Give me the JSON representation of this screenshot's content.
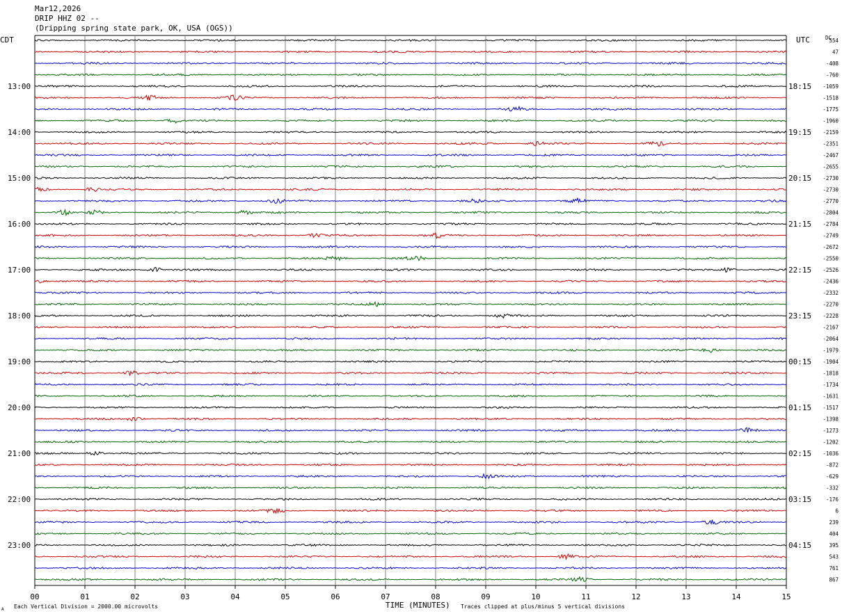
{
  "header": {
    "date": "Mar12,2026",
    "station": "DRIP HHZ 02 --",
    "location": "(Dripping spring state park, OK, USA (OGS))"
  },
  "left_tz": "CDT",
  "right_tz": "UTC",
  "dc_label": "DC",
  "footer": {
    "xlabel": "TIME (MINUTES)",
    "scale_note": "Each Vertical Division = 2000.00 microvolts",
    "clip_note": "Traces clipped at plus/minus 5 vertical divisions",
    "corner_mark": "A"
  },
  "colors": {
    "cycle": [
      "#000000",
      "#cc0000",
      "#0000cc",
      "#006400"
    ],
    "grid": "#808080"
  },
  "chart_data": {
    "type": "line",
    "x_ticks": [
      "00",
      "01",
      "02",
      "03",
      "04",
      "05",
      "06",
      "07",
      "08",
      "09",
      "10",
      "11",
      "12",
      "13",
      "14",
      "15"
    ],
    "xlim": [
      0,
      15
    ],
    "trace_minutes": 15,
    "left_hour_labels": [
      {
        "trace": 4,
        "label": "13:00"
      },
      {
        "trace": 8,
        "label": "14:00"
      },
      {
        "trace": 12,
        "label": "15:00"
      },
      {
        "trace": 16,
        "label": "16:00"
      },
      {
        "trace": 20,
        "label": "17:00"
      },
      {
        "trace": 24,
        "label": "18:00"
      },
      {
        "trace": 28,
        "label": "19:00"
      },
      {
        "trace": 32,
        "label": "20:00"
      },
      {
        "trace": 36,
        "label": "21:00"
      },
      {
        "trace": 40,
        "label": "22:00"
      },
      {
        "trace": 44,
        "label": "23:00"
      }
    ],
    "right_hour_labels": [
      {
        "trace": 4,
        "label": "18:15"
      },
      {
        "trace": 8,
        "label": "19:15"
      },
      {
        "trace": 12,
        "label": "20:15"
      },
      {
        "trace": 16,
        "label": "21:15"
      },
      {
        "trace": 20,
        "label": "22:15"
      },
      {
        "trace": 24,
        "label": "23:15"
      },
      {
        "trace": 28,
        "label": "00:15"
      },
      {
        "trace": 32,
        "label": "01:15"
      },
      {
        "trace": 36,
        "label": "02:15"
      },
      {
        "trace": 40,
        "label": "03:15"
      },
      {
        "trace": 44,
        "label": "04:15"
      }
    ],
    "dc_offsets": [
      "554",
      "47",
      "-408",
      "-760",
      "-1059",
      "-1518",
      "-1775",
      "-1960",
      "-2159",
      "-2351",
      "-2467",
      "-2655",
      "-2730",
      "-2730",
      "-2770",
      "-2804",
      "-2784",
      "-2749",
      "-2672",
      "-2550",
      "-2526",
      "-2436",
      "-2332",
      "-2270",
      "-2228",
      "-2167",
      "-2064",
      "-1979",
      "-1904",
      "-1818",
      "-1734",
      "-1631",
      "-1517",
      "-1398",
      "-1273",
      "-1202",
      "-1036",
      "-872",
      "-629",
      "-332",
      "-176",
      "6",
      "239",
      "404",
      "395",
      "543",
      "761",
      "867"
    ],
    "events": [
      {
        "trace": 5,
        "minute": 2.3
      },
      {
        "trace": 5,
        "minute": 4.0
      },
      {
        "trace": 6,
        "minute": 9.6
      },
      {
        "trace": 7,
        "minute": 2.8
      },
      {
        "trace": 9,
        "minute": 10.0
      },
      {
        "trace": 9,
        "minute": 12.4
      },
      {
        "trace": 13,
        "minute": 0.1
      },
      {
        "trace": 13,
        "minute": 1.2
      },
      {
        "trace": 14,
        "minute": 4.8
      },
      {
        "trace": 14,
        "minute": 8.7
      },
      {
        "trace": 14,
        "minute": 10.8
      },
      {
        "trace": 15,
        "minute": 0.6
      },
      {
        "trace": 15,
        "minute": 1.2
      },
      {
        "trace": 15,
        "minute": 4.2
      },
      {
        "trace": 17,
        "minute": 5.6
      },
      {
        "trace": 17,
        "minute": 8.0
      },
      {
        "trace": 19,
        "minute": 6.0
      },
      {
        "trace": 19,
        "minute": 7.6
      },
      {
        "trace": 20,
        "minute": 2.4
      },
      {
        "trace": 20,
        "minute": 13.8
      },
      {
        "trace": 21,
        "minute": 0.1
      },
      {
        "trace": 23,
        "minute": 6.8
      },
      {
        "trace": 24,
        "minute": 9.3
      },
      {
        "trace": 27,
        "minute": 13.5
      },
      {
        "trace": 29,
        "minute": 1.9
      },
      {
        "trace": 33,
        "minute": 2.0
      },
      {
        "trace": 34,
        "minute": 14.2
      },
      {
        "trace": 36,
        "minute": 1.2
      },
      {
        "trace": 38,
        "minute": 9.0
      },
      {
        "trace": 41,
        "minute": 4.8
      },
      {
        "trace": 42,
        "minute": 13.5
      },
      {
        "trace": 45,
        "minute": 10.6
      },
      {
        "trace": 47,
        "minute": 10.9
      }
    ]
  }
}
